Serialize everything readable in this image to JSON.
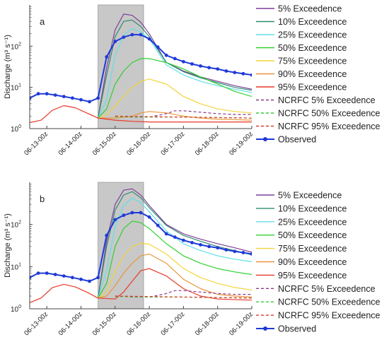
{
  "colors": {
    "p5": "#7f3f98",
    "p10": "#2e8b6f",
    "p25": "#5fe0e6",
    "p50": "#2fd12f",
    "p75": "#f2d43a",
    "p90": "#e8963a",
    "p95": "#e8382a",
    "nc5": "#8a3b8a",
    "nc50": "#33cc33",
    "nc95": "#e0382a",
    "obs": "#1f3ad8",
    "shade": "#c8c8c8"
  },
  "legend_labels": {
    "p5": "5% Exceedence",
    "p10": "10% Exceedence",
    "p25": "25% Exceedence",
    "p50": "50% Exceedence",
    "p75": "75% Exceedence",
    "p90": "90% Exceedence",
    "p95": "95% Exceedence",
    "nc5": "NCRFC 5% Exceedence",
    "nc50": "NCRFC 50% Exceedence",
    "nc95": "NCRFC 95% Exceedence",
    "obs": "Observed"
  },
  "chart_data": [
    {
      "type": "line",
      "panel_label": "a",
      "ylabel": "Discharge (m³ s⁻¹)",
      "yscale": "log",
      "ylim": [
        1,
        1000
      ],
      "y_ticks": [
        "10⁰",
        "10¹",
        "10²"
      ],
      "x_ticks": [
        "06-13-00z",
        "06-14-00z",
        "06-15-00z",
        "06-16-00z",
        "06-17-00z",
        "06-18-00z",
        "06-19-00z"
      ],
      "xlim_days": [
        12.5,
        19.0
      ],
      "shaded_span": [
        "06-14-12z",
        "06-15-20z"
      ],
      "legend_position": "outside-right",
      "series": [
        {
          "key": "p5",
          "style": "solid",
          "x": [
            "06-14-12z",
            "06-14-18z",
            "06-15-00z",
            "06-15-06z",
            "06-15-12z",
            "06-15-18z",
            "06-16-00z",
            "06-16-12z",
            "06-17-00z",
            "06-17-12z",
            "06-18-00z",
            "06-18-12z",
            "06-19-00z"
          ],
          "y": [
            1.8,
            30,
            250,
            600,
            560,
            380,
            200,
            40,
            25,
            18,
            14,
            11,
            9
          ]
        },
        {
          "key": "p10",
          "style": "solid",
          "x": [
            "06-14-12z",
            "06-14-18z",
            "06-15-00z",
            "06-15-06z",
            "06-15-12z",
            "06-15-18z",
            "06-16-00z",
            "06-16-12z",
            "06-17-00z",
            "06-17-12z",
            "06-18-00z",
            "06-18-12z",
            "06-19-00z"
          ],
          "y": [
            1.8,
            20,
            170,
            400,
            430,
            300,
            170,
            40,
            24,
            17,
            13,
            10,
            8.5
          ]
        },
        {
          "key": "p25",
          "style": "solid",
          "x": [
            "06-14-12z",
            "06-14-18z",
            "06-15-00z",
            "06-15-06z",
            "06-15-12z",
            "06-15-18z",
            "06-16-00z",
            "06-16-12z",
            "06-17-00z",
            "06-17-12z",
            "06-18-00z",
            "06-18-12z",
            "06-19-00z"
          ],
          "y": [
            1.8,
            5,
            60,
            180,
            270,
            220,
            150,
            35,
            20,
            14,
            11,
            9,
            7.5
          ]
        },
        {
          "key": "p50",
          "style": "solid",
          "x": [
            "06-14-12z",
            "06-14-18z",
            "06-15-00z",
            "06-15-06z",
            "06-15-12z",
            "06-15-18z",
            "06-16-00z",
            "06-16-12z",
            "06-17-00z",
            "06-17-12z",
            "06-18-00z",
            "06-18-12z",
            "06-19-00z"
          ],
          "y": [
            1.8,
            3,
            12,
            25,
            40,
            50,
            50,
            40,
            28,
            18,
            12,
            8,
            6
          ]
        },
        {
          "key": "p75",
          "style": "solid",
          "x": [
            "06-14-12z",
            "06-14-18z",
            "06-15-00z",
            "06-15-06z",
            "06-15-12z",
            "06-15-18z",
            "06-16-00z",
            "06-16-12z",
            "06-17-00z",
            "06-17-12z",
            "06-18-00z",
            "06-18-12z",
            "06-19-00z"
          ],
          "y": [
            1.8,
            2.2,
            3.5,
            6,
            10,
            14,
            16,
            12,
            6,
            4,
            3,
            2.6,
            2.4
          ]
        },
        {
          "key": "p90",
          "style": "solid",
          "x": [
            "06-14-12z",
            "06-15-00z",
            "06-15-12z",
            "06-15-18z",
            "06-16-00z",
            "06-16-12z",
            "06-17-00z",
            "06-17-12z",
            "06-18-00z",
            "06-18-12z",
            "06-19-00z"
          ],
          "y": [
            1.8,
            1.8,
            2,
            2.4,
            2.6,
            2.4,
            2.0,
            1.8,
            1.7,
            1.65,
            1.6
          ]
        },
        {
          "key": "p95",
          "style": "solid",
          "x": [
            "06-12-12z",
            "06-12-20z",
            "06-13-04z",
            "06-13-12z",
            "06-13-20z",
            "06-14-04z",
            "06-14-12z",
            "06-15-00z",
            "06-15-12z",
            "06-16-00z",
            "06-16-12z",
            "06-17-00z",
            "06-18-00z",
            "06-19-00z"
          ],
          "y": [
            1.4,
            1.6,
            2.8,
            3.6,
            3.2,
            2.4,
            1.8,
            1.6,
            1.5,
            1.45,
            1.45,
            1.45,
            1.45,
            1.45
          ]
        },
        {
          "key": "nc5",
          "style": "dashed",
          "x": [
            "06-15-00z",
            "06-15-12z",
            "06-16-00z",
            "06-16-12z",
            "06-16-18z",
            "06-17-00z",
            "06-17-12z",
            "06-18-00z",
            "06-18-12z",
            "06-19-00z"
          ],
          "y": [
            2.0,
            1.9,
            1.9,
            2.3,
            2.7,
            2.7,
            2.5,
            2.3,
            2.2,
            2.2
          ]
        },
        {
          "key": "nc50",
          "style": "dashed",
          "x": [
            "06-15-00z",
            "06-16-00z",
            "06-17-00z",
            "06-18-00z",
            "06-19-00z"
          ],
          "y": [
            1.95,
            1.9,
            1.9,
            1.85,
            1.8
          ]
        },
        {
          "key": "nc95",
          "style": "dashed",
          "x": [
            "06-15-00z",
            "06-16-00z",
            "06-17-00z",
            "06-18-00z",
            "06-19-00z"
          ],
          "y": [
            2.0,
            1.95,
            1.9,
            1.85,
            1.8
          ]
        },
        {
          "key": "obs",
          "style": "solid-markers",
          "x": [
            "06-12-12z",
            "06-12-18z",
            "06-13-00z",
            "06-13-06z",
            "06-13-12z",
            "06-13-18z",
            "06-14-00z",
            "06-14-06z",
            "06-14-12z",
            "06-14-18z",
            "06-15-00z",
            "06-15-06z",
            "06-15-12z",
            "06-15-18z",
            "06-16-00z",
            "06-16-06z",
            "06-16-12z",
            "06-16-18z",
            "06-17-00z",
            "06-17-06z",
            "06-17-12z",
            "06-17-18z",
            "06-18-00z",
            "06-18-06z",
            "06-18-12z",
            "06-18-18z",
            "06-19-00z"
          ],
          "y": [
            5.5,
            7,
            7,
            6.5,
            6,
            5.5,
            5,
            4.5,
            5.5,
            55,
            130,
            165,
            190,
            190,
            150,
            95,
            60,
            50,
            42,
            37,
            33,
            30,
            28,
            25,
            23,
            21.5,
            20
          ]
        }
      ]
    },
    {
      "type": "line",
      "panel_label": "b",
      "ylabel": "Discharge (m³ s⁻¹)",
      "yscale": "log",
      "ylim": [
        1,
        1000
      ],
      "y_ticks": [
        "10⁰",
        "10¹",
        "10²"
      ],
      "x_ticks": [
        "06-13-00z",
        "06-14-00z",
        "06-15-00z",
        "06-16-00z",
        "06-17-00z",
        "06-18-00z",
        "06-19-00z"
      ],
      "xlim_days": [
        12.5,
        19.0
      ],
      "shaded_span": [
        "06-14-12z",
        "06-15-20z"
      ],
      "legend_position": "outside-right",
      "series": [
        {
          "key": "p5",
          "style": "solid",
          "x": [
            "06-14-12z",
            "06-14-18z",
            "06-15-00z",
            "06-15-06z",
            "06-15-12z",
            "06-15-18z",
            "06-16-00z",
            "06-16-12z",
            "06-17-00z",
            "06-17-12z",
            "06-18-00z",
            "06-18-12z",
            "06-19-00z"
          ],
          "y": [
            1.8,
            40,
            300,
            650,
            700,
            500,
            280,
            100,
            60,
            45,
            35,
            28,
            22
          ]
        },
        {
          "key": "p10",
          "style": "solid",
          "x": [
            "06-14-12z",
            "06-14-18z",
            "06-15-00z",
            "06-15-06z",
            "06-15-12z",
            "06-15-18z",
            "06-16-00z",
            "06-16-12z",
            "06-17-00z",
            "06-17-12z",
            "06-18-00z",
            "06-18-12z",
            "06-19-00z"
          ],
          "y": [
            1.8,
            30,
            220,
            500,
            600,
            430,
            250,
            95,
            55,
            40,
            30,
            24,
            19
          ]
        },
        {
          "key": "p25",
          "style": "solid",
          "x": [
            "06-14-12z",
            "06-14-18z",
            "06-15-00z",
            "06-15-06z",
            "06-15-12z",
            "06-15-18z",
            "06-16-00z",
            "06-16-12z",
            "06-17-00z",
            "06-17-12z",
            "06-18-00z",
            "06-18-12z",
            "06-19-00z"
          ],
          "y": [
            1.8,
            8,
            90,
            280,
            420,
            330,
            200,
            70,
            35,
            24,
            18,
            15,
            13
          ]
        },
        {
          "key": "p50",
          "style": "solid",
          "x": [
            "06-14-12z",
            "06-14-18z",
            "06-15-00z",
            "06-15-06z",
            "06-15-12z",
            "06-15-18z",
            "06-16-00z",
            "06-16-12z",
            "06-17-00z",
            "06-17-12z",
            "06-18-00z",
            "06-18-12z",
            "06-19-00z"
          ],
          "y": [
            1.8,
            4,
            30,
            80,
            120,
            110,
            80,
            35,
            18,
            12,
            9,
            7.5,
            6.5
          ]
        },
        {
          "key": "p75",
          "style": "solid",
          "x": [
            "06-14-12z",
            "06-14-18z",
            "06-15-00z",
            "06-15-06z",
            "06-15-12z",
            "06-15-18z",
            "06-16-00z",
            "06-16-12z",
            "06-17-00z",
            "06-17-12z",
            "06-18-00z",
            "06-18-12z",
            "06-19-00z"
          ],
          "y": [
            1.8,
            2.5,
            8,
            18,
            30,
            36,
            34,
            20,
            9,
            5.5,
            4,
            3.2,
            2.8
          ]
        },
        {
          "key": "p90",
          "style": "solid",
          "x": [
            "06-14-12z",
            "06-14-18z",
            "06-15-00z",
            "06-15-06z",
            "06-15-12z",
            "06-15-18z",
            "06-16-00z",
            "06-16-12z",
            "06-17-00z",
            "06-17-12z",
            "06-18-00z",
            "06-18-12z",
            "06-19-00z"
          ],
          "y": [
            1.8,
            2,
            3.5,
            7,
            12,
            18,
            20,
            12,
            5,
            3,
            2.2,
            2.0,
            1.9
          ]
        },
        {
          "key": "p95",
          "style": "solid",
          "x": [
            "06-12-12z",
            "06-12-20z",
            "06-13-04z",
            "06-13-12z",
            "06-13-20z",
            "06-14-04z",
            "06-14-12z",
            "06-15-00z",
            "06-15-06z",
            "06-15-12z",
            "06-15-18z",
            "06-16-00z",
            "06-16-12z",
            "06-17-00z",
            "06-17-12z",
            "06-18-00z",
            "06-19-00z"
          ],
          "y": [
            1.4,
            1.8,
            3.2,
            3.8,
            3.3,
            2.5,
            1.8,
            1.7,
            2.5,
            4.5,
            8,
            9,
            6,
            3,
            2.0,
            1.7,
            1.6
          ]
        },
        {
          "key": "nc5",
          "style": "dashed",
          "x": [
            "06-15-00z",
            "06-15-12z",
            "06-16-00z",
            "06-16-12z",
            "06-16-18z",
            "06-17-00z",
            "06-17-12z",
            "06-18-00z",
            "06-18-12z",
            "06-19-00z"
          ],
          "y": [
            2.0,
            1.9,
            1.9,
            2.3,
            2.7,
            2.7,
            2.5,
            2.3,
            2.2,
            2.2
          ]
        },
        {
          "key": "nc50",
          "style": "dashed",
          "x": [
            "06-15-00z",
            "06-16-00z",
            "06-17-00z",
            "06-18-00z",
            "06-19-00z"
          ],
          "y": [
            1.95,
            1.9,
            1.9,
            1.85,
            1.8
          ]
        },
        {
          "key": "nc95",
          "style": "dashed",
          "x": [
            "06-15-00z",
            "06-16-00z",
            "06-17-00z",
            "06-18-00z",
            "06-19-00z"
          ],
          "y": [
            2.0,
            1.95,
            1.9,
            1.85,
            1.8
          ]
        },
        {
          "key": "obs",
          "style": "solid-markers",
          "x": [
            "06-12-12z",
            "06-12-18z",
            "06-13-00z",
            "06-13-06z",
            "06-13-12z",
            "06-13-18z",
            "06-14-00z",
            "06-14-06z",
            "06-14-12z",
            "06-14-18z",
            "06-15-00z",
            "06-15-06z",
            "06-15-12z",
            "06-15-18z",
            "06-16-00z",
            "06-16-06z",
            "06-16-12z",
            "06-16-18z",
            "06-17-00z",
            "06-17-06z",
            "06-17-12z",
            "06-17-18z",
            "06-18-00z",
            "06-18-06z",
            "06-18-12z",
            "06-18-18z",
            "06-19-00z"
          ],
          "y": [
            5.5,
            7,
            7,
            6.5,
            6,
            5.5,
            5,
            4.5,
            5.5,
            55,
            130,
            165,
            190,
            190,
            150,
            95,
            60,
            50,
            42,
            37,
            33,
            30,
            28,
            25,
            23,
            21.5,
            20
          ]
        }
      ]
    }
  ]
}
